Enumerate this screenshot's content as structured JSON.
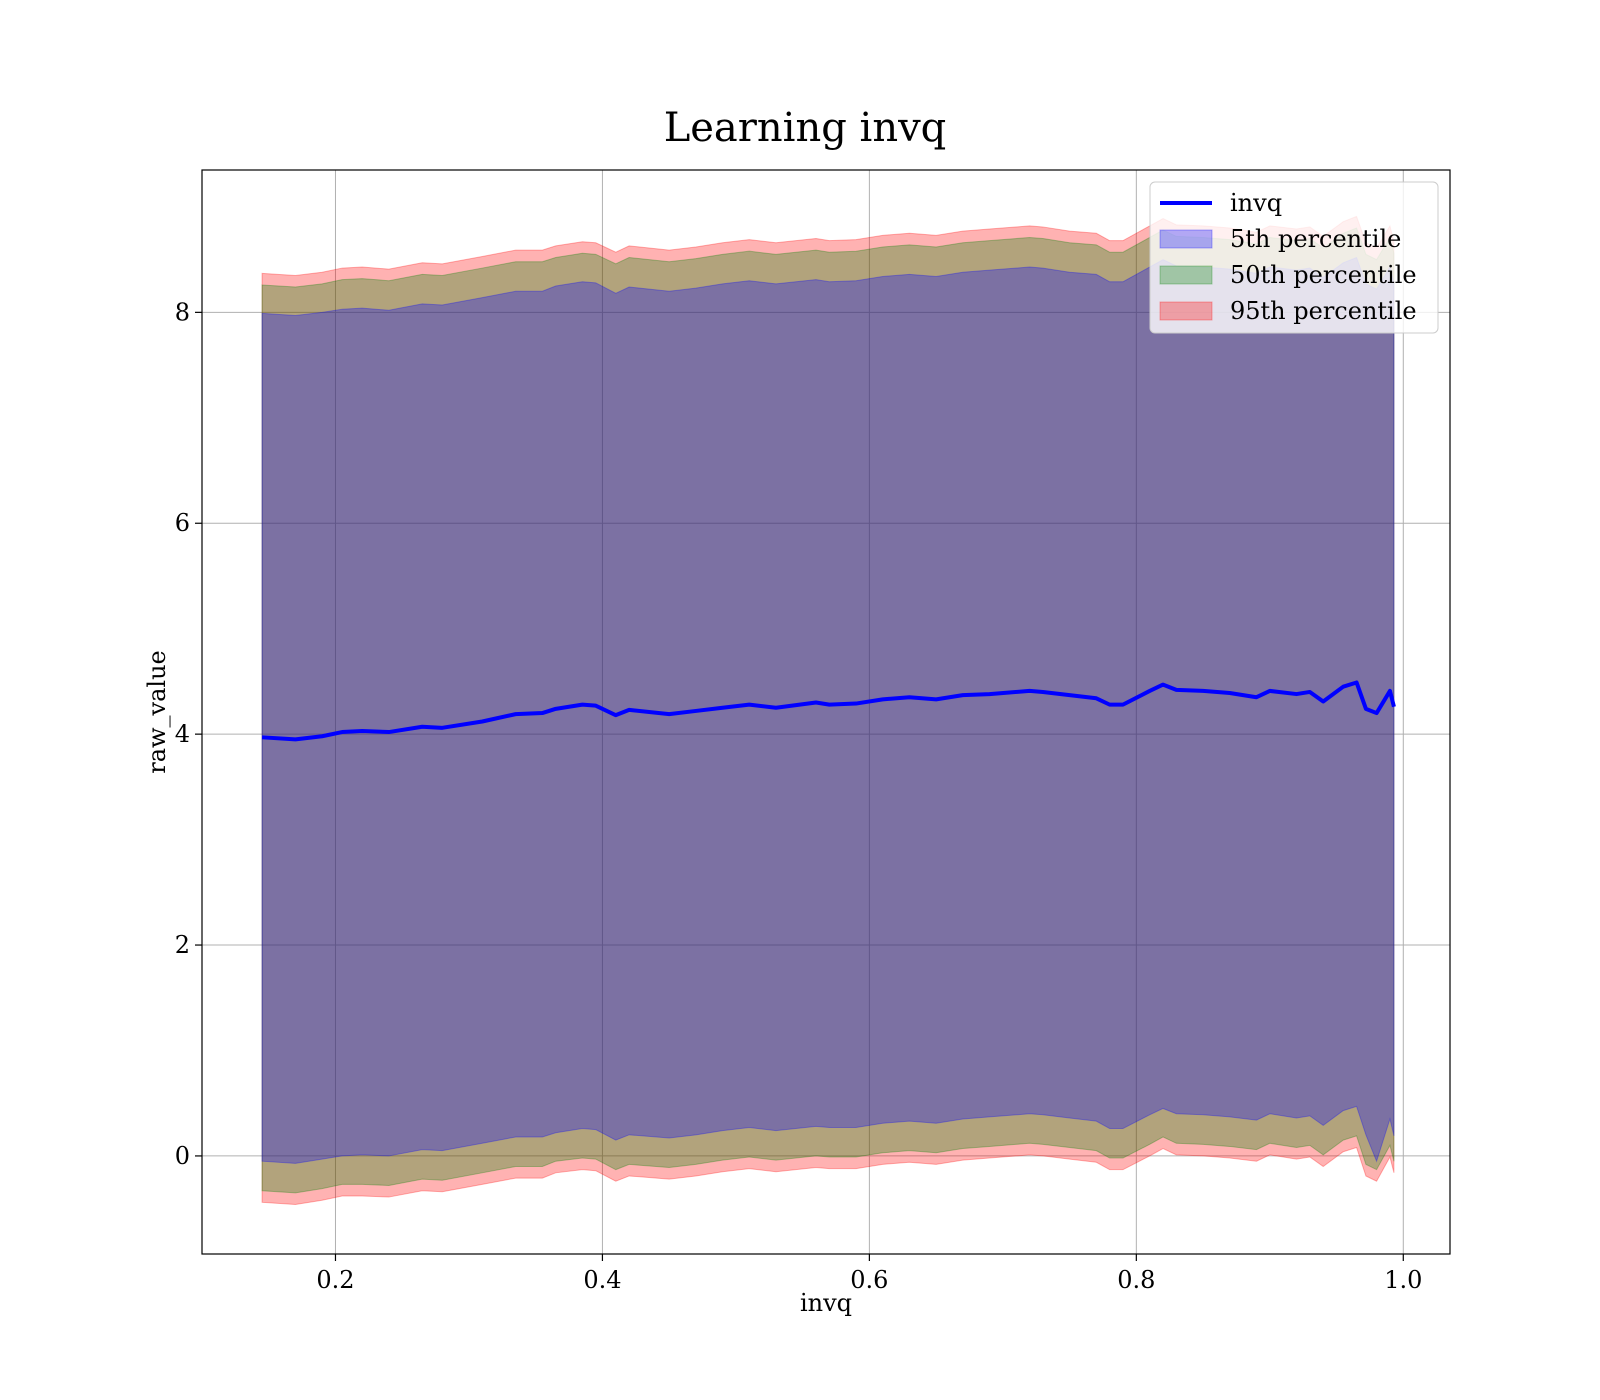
{
  "chart_data": {
    "type": "area",
    "title": "Learning invq",
    "xlabel": "invq",
    "ylabel": "raw_value",
    "xlim": [
      0.1,
      1.035
    ],
    "ylim": [
      -0.93,
      9.35
    ],
    "xticks": [
      0.2,
      0.4,
      0.6,
      0.8,
      1.0
    ],
    "xtick_labels": [
      "0.2",
      "0.4",
      "0.6",
      "0.8",
      "1.0"
    ],
    "yticks": [
      0,
      2,
      4,
      6,
      8
    ],
    "ytick_labels": [
      "0",
      "2",
      "4",
      "6",
      "8"
    ],
    "grid": true,
    "legend_position": "top-right",
    "legend": [
      {
        "label": "invq",
        "kind": "line",
        "color": "#0000ff"
      },
      {
        "label": "5th percentile",
        "kind": "patch",
        "color": "#0000ff"
      },
      {
        "label": "50th percentile",
        "kind": "patch",
        "color": "#008000"
      },
      {
        "label": "95th percentile",
        "kind": "patch",
        "color": "#ff0000"
      }
    ],
    "x": [
      0.145,
      0.17,
      0.19,
      0.205,
      0.22,
      0.24,
      0.265,
      0.28,
      0.31,
      0.335,
      0.355,
      0.365,
      0.385,
      0.395,
      0.41,
      0.42,
      0.45,
      0.47,
      0.49,
      0.51,
      0.53,
      0.56,
      0.57,
      0.59,
      0.61,
      0.63,
      0.65,
      0.67,
      0.69,
      0.72,
      0.73,
      0.75,
      0.77,
      0.78,
      0.79,
      0.81,
      0.82,
      0.83,
      0.85,
      0.87,
      0.89,
      0.9,
      0.92,
      0.93,
      0.94,
      0.955,
      0.965,
      0.972,
      0.98,
      0.99,
      0.993
    ],
    "series": [
      {
        "name": "invq",
        "color": "#0000ff",
        "values": [
          3.97,
          3.95,
          3.98,
          4.02,
          4.03,
          4.02,
          4.07,
          4.06,
          4.12,
          4.19,
          4.2,
          4.24,
          4.28,
          4.27,
          4.18,
          4.23,
          4.19,
          4.22,
          4.25,
          4.28,
          4.25,
          4.3,
          4.28,
          4.29,
          4.33,
          4.35,
          4.33,
          4.37,
          4.38,
          4.41,
          4.4,
          4.37,
          4.34,
          4.28,
          4.28,
          4.41,
          4.47,
          4.42,
          4.41,
          4.39,
          4.35,
          4.41,
          4.38,
          4.4,
          4.31,
          4.45,
          4.49,
          4.24,
          4.2,
          4.41,
          4.26
        ]
      },
      {
        "name": "5th percentile",
        "color": "#0000ff",
        "opacity": 0.3,
        "lower": [
          -0.05,
          -0.07,
          -0.03,
          0.0,
          0.01,
          0.0,
          0.06,
          0.05,
          0.12,
          0.18,
          0.18,
          0.22,
          0.26,
          0.25,
          0.15,
          0.2,
          0.17,
          0.2,
          0.24,
          0.27,
          0.24,
          0.28,
          0.27,
          0.27,
          0.31,
          0.33,
          0.31,
          0.35,
          0.37,
          0.4,
          0.39,
          0.36,
          0.33,
          0.26,
          0.26,
          0.39,
          0.45,
          0.4,
          0.39,
          0.37,
          0.34,
          0.4,
          0.36,
          0.38,
          0.29,
          0.43,
          0.47,
          0.2,
          -0.05,
          0.35,
          0.19
        ],
        "upper": [
          7.99,
          7.97,
          8.0,
          8.03,
          8.04,
          8.02,
          8.08,
          8.07,
          8.14,
          8.2,
          8.2,
          8.25,
          8.29,
          8.28,
          8.18,
          8.24,
          8.2,
          8.23,
          8.27,
          8.3,
          8.27,
          8.31,
          8.29,
          8.3,
          8.34,
          8.36,
          8.34,
          8.38,
          8.4,
          8.43,
          8.42,
          8.38,
          8.36,
          8.29,
          8.29,
          8.43,
          8.5,
          8.44,
          8.43,
          8.41,
          8.37,
          8.43,
          8.4,
          8.42,
          8.33,
          8.47,
          8.52,
          8.27,
          8.22,
          8.43,
          8.28
        ]
      },
      {
        "name": "50th percentile",
        "color": "#008000",
        "opacity": 0.3,
        "lower": [
          -0.33,
          -0.35,
          -0.31,
          -0.27,
          -0.27,
          -0.28,
          -0.22,
          -0.23,
          -0.16,
          -0.1,
          -0.1,
          -0.05,
          -0.02,
          -0.03,
          -0.13,
          -0.08,
          -0.11,
          -0.08,
          -0.04,
          -0.01,
          -0.04,
          0.0,
          -0.01,
          -0.01,
          0.03,
          0.05,
          0.03,
          0.07,
          0.09,
          0.12,
          0.11,
          0.08,
          0.05,
          -0.02,
          -0.02,
          0.11,
          0.18,
          0.12,
          0.11,
          0.09,
          0.06,
          0.12,
          0.08,
          0.1,
          0.01,
          0.15,
          0.19,
          -0.08,
          -0.13,
          0.1,
          -0.05
        ],
        "upper": [
          8.26,
          8.24,
          8.27,
          8.31,
          8.32,
          8.3,
          8.36,
          8.35,
          8.42,
          8.48,
          8.48,
          8.52,
          8.56,
          8.55,
          8.46,
          8.52,
          8.48,
          8.51,
          8.55,
          8.58,
          8.55,
          8.59,
          8.57,
          8.58,
          8.62,
          8.64,
          8.62,
          8.66,
          8.68,
          8.71,
          8.7,
          8.66,
          8.64,
          8.57,
          8.57,
          8.71,
          8.78,
          8.72,
          8.71,
          8.69,
          8.65,
          8.71,
          8.68,
          8.7,
          8.61,
          8.75,
          8.8,
          8.55,
          8.5,
          8.71,
          8.56
        ]
      },
      {
        "name": "95th percentile",
        "color": "#ff0000",
        "opacity": 0.3,
        "lower": [
          -0.44,
          -0.46,
          -0.42,
          -0.38,
          -0.38,
          -0.39,
          -0.33,
          -0.34,
          -0.27,
          -0.21,
          -0.21,
          -0.16,
          -0.13,
          -0.14,
          -0.24,
          -0.19,
          -0.22,
          -0.19,
          -0.15,
          -0.12,
          -0.15,
          -0.11,
          -0.12,
          -0.12,
          -0.08,
          -0.06,
          -0.08,
          -0.04,
          -0.02,
          0.01,
          0.0,
          -0.03,
          -0.06,
          -0.13,
          -0.13,
          0.0,
          0.07,
          0.01,
          0.0,
          -0.02,
          -0.05,
          0.01,
          -0.03,
          -0.01,
          -0.1,
          0.04,
          0.08,
          -0.19,
          -0.24,
          -0.01,
          -0.16
        ],
        "upper": [
          8.37,
          8.35,
          8.38,
          8.42,
          8.43,
          8.41,
          8.47,
          8.46,
          8.53,
          8.59,
          8.59,
          8.63,
          8.67,
          8.66,
          8.57,
          8.63,
          8.59,
          8.62,
          8.66,
          8.69,
          8.66,
          8.7,
          8.68,
          8.69,
          8.73,
          8.75,
          8.73,
          8.77,
          8.79,
          8.82,
          8.81,
          8.77,
          8.75,
          8.68,
          8.68,
          8.82,
          8.89,
          8.83,
          8.82,
          8.8,
          8.76,
          8.82,
          8.79,
          8.81,
          8.72,
          8.86,
          8.91,
          8.66,
          8.61,
          8.82,
          8.67
        ]
      }
    ]
  }
}
